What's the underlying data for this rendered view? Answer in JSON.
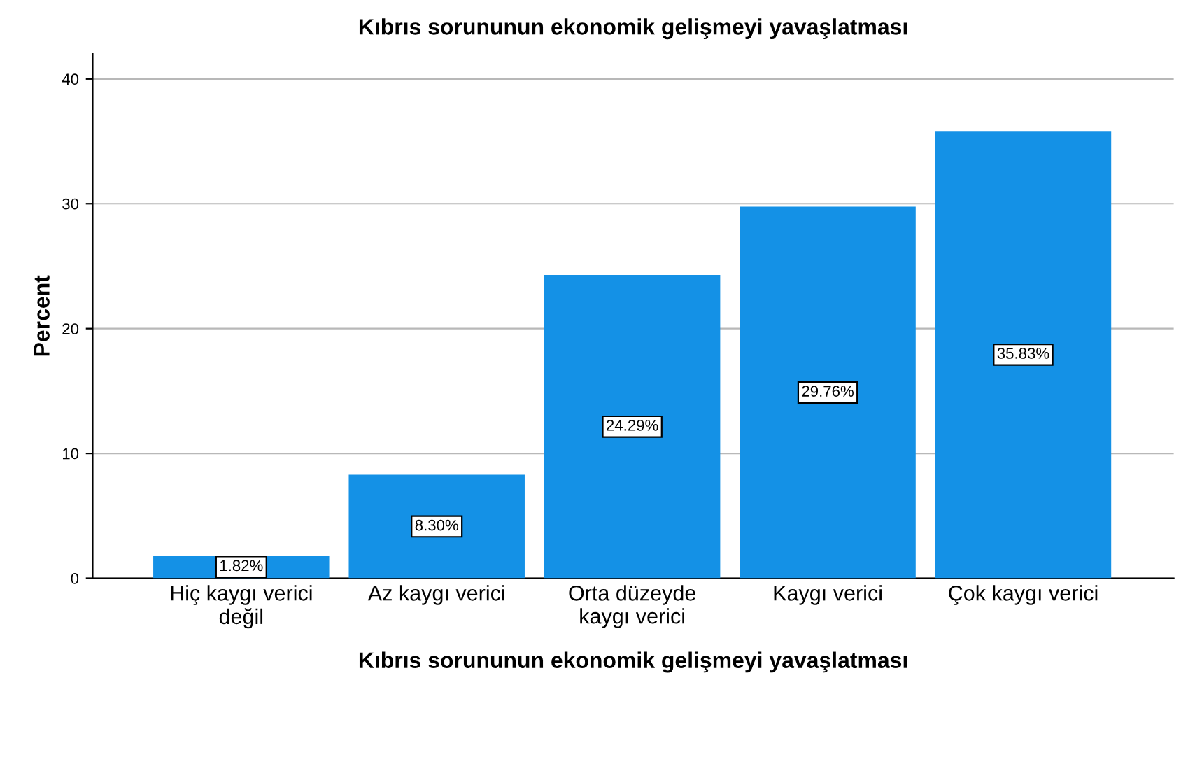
{
  "chart_data": {
    "type": "bar",
    "title": "Kıbrıs sorununun ekonomik gelişmeyi yavaşlatması",
    "xlabel": "Kıbrıs sorununun ekonomik gelişmeyi yavaşlatması",
    "ylabel": "Percent",
    "categories": [
      "Hiç kaygı verici\ndeğil",
      "Az kaygı verici",
      "Orta düzeyde\nkaygı verici",
      "Kaygı verici",
      "Çok kaygı verici"
    ],
    "values": [
      1.82,
      8.3,
      24.29,
      29.76,
      35.83
    ],
    "value_labels": [
      "1.82%",
      "8.30%",
      "24.29%",
      "29.76%",
      "35.83%"
    ],
    "color": "#1491e6",
    "ylim": [
      0,
      42
    ],
    "yticks": [
      0,
      10,
      20,
      30,
      40
    ],
    "grid": "y",
    "legend": false
  }
}
